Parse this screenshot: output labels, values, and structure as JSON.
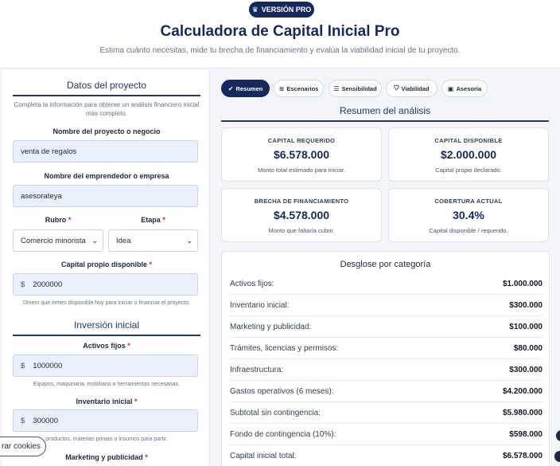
{
  "header": {
    "badge": "VERSIÓN PRO",
    "title": "Calculadora de Capital Inicial Pro",
    "subtitle": "Estima cuánto necesitas, mide tu brecha de financiamiento y evalúa la viabilidad inicial de tu proyecto."
  },
  "form": {
    "project_section": "Datos del proyecto",
    "project_helper": "Completa la información para obtener un análisis financiero inicial más completo.",
    "project_name_label": "Nombre del proyecto o negocio",
    "project_name_value": "venta de regalos",
    "entrepreneur_label": "Nombre del emprendedor o empresa",
    "entrepreneur_value": "asesorateya",
    "rubro_label": "Rubro",
    "rubro_value": "Comercio minorista",
    "etapa_label": "Etapa",
    "etapa_value": "Idea",
    "required_mark": "*",
    "own_capital_label": "Capital propio disponible",
    "currency": "$",
    "own_capital_value": "2000000",
    "own_capital_note": "Dinero que tienes disponible hoy para iniciar o financiar el proyecto.",
    "investment_section": "Inversión inicial",
    "fixed_assets_label": "Activos fijos",
    "fixed_assets_value": "1000000",
    "fixed_assets_note": "Equipos, maquinaria, mobiliario o herramientas necesarias.",
    "inventory_label": "Inventario inicial",
    "inventory_value": "300000",
    "inventory_note": "productos, materias primas o insumos para partir.",
    "marketing_label": "Marketing y publicidad"
  },
  "cookie_button": "rar cookies",
  "tabs": [
    {
      "label": "Resumen",
      "icon": "check-circle-icon",
      "glyph": "✔"
    },
    {
      "label": "Escenarios",
      "icon": "layers-icon",
      "glyph": "≋"
    },
    {
      "label": "Sensibilidad",
      "icon": "sliders-icon",
      "glyph": "☰"
    },
    {
      "label": "Viabilidad",
      "icon": "shield-icon",
      "glyph": "⛉"
    },
    {
      "label": "Asesoría",
      "icon": "briefcase-icon",
      "glyph": "▣"
    }
  ],
  "summary": {
    "title": "Resumen del análisis",
    "cards": [
      {
        "label": "CAPITAL REQUERIDO",
        "value": "$6.578.000",
        "desc": "Monto total estimado para iniciar."
      },
      {
        "label": "CAPITAL DISPONIBLE",
        "value": "$2.000.000",
        "desc": "Capital propio declarado."
      },
      {
        "label": "BRECHA DE FINANCIAMIENTO",
        "value": "$4.578.000",
        "desc": "Monto que faltaría cubrir."
      },
      {
        "label": "COBERTURA ACTUAL",
        "value": "30.4%",
        "desc": "Capital disponible / requerido."
      }
    ]
  },
  "breakdown": {
    "title": "Desglose por categoría",
    "rows": [
      {
        "label": "Activos fijos:",
        "value": "$1.000.000"
      },
      {
        "label": "Inventario inicial:",
        "value": "$300.000"
      },
      {
        "label": "Marketing y publicidad:",
        "value": "$100.000"
      },
      {
        "label": "Trámites, licencias y permisos:",
        "value": "$80.000"
      },
      {
        "label": "Infraestructura:",
        "value": "$300.000"
      },
      {
        "label": "Gastos operativos (6 meses):",
        "value": "$4.200.000"
      },
      {
        "label": "Subtotal sin contingencia:",
        "value": "$5.980.000"
      },
      {
        "label": "Fondo de contingencia (10%):",
        "value": "$598.000"
      },
      {
        "label": "Capital inicial total:",
        "value": "$6.578.000"
      }
    ]
  }
}
